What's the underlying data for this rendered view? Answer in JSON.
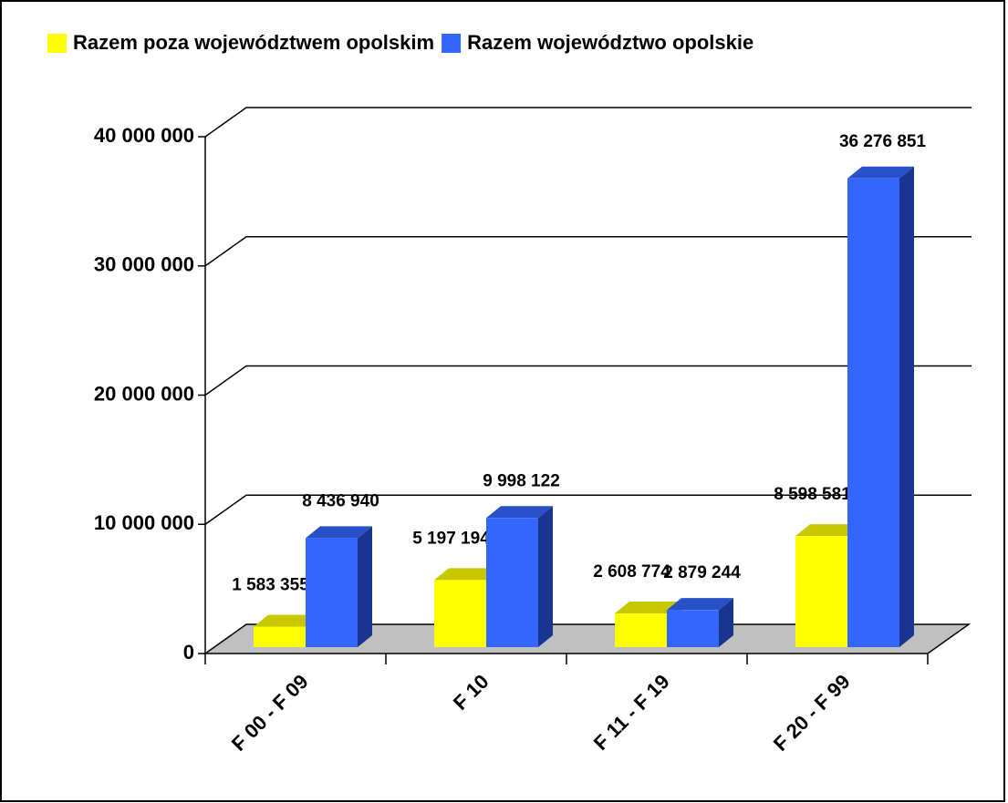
{
  "chart_data": {
    "type": "bar3d",
    "categories": [
      "F 00 - F 09",
      "F 10",
      "F 11 - F 19",
      "F 20 - F 99"
    ],
    "series": [
      {
        "name": "Razem poza województwem opolskim",
        "color": "#ffff00",
        "values": [
          1583355,
          5197194,
          2608774,
          8598581
        ],
        "value_labels": [
          "1 583 355",
          "5 197 194",
          "2 608 774",
          "8 598 581"
        ]
      },
      {
        "name": "Razem województwo opolskie",
        "color": "#3366ff",
        "values": [
          8436940,
          9998122,
          2879244,
          36276851
        ],
        "value_labels": [
          "8 436 940",
          "9 998 122",
          "2 879 244",
          "36 276 851"
        ]
      }
    ],
    "ylim": [
      0,
      40000000
    ],
    "yticks": [
      0,
      {
        "value": 10000000,
        "label": "10 000 000"
      },
      {
        "value": 20000000,
        "label": "20 000 000"
      },
      {
        "value": 30000000,
        "label": "30 000 000"
      },
      {
        "value": 40000000,
        "label": "40 000 000"
      }
    ],
    "grid": true,
    "legend": "top"
  }
}
